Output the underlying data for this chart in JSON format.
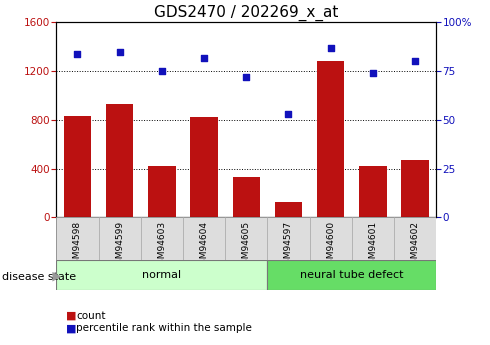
{
  "title": "GDS2470 / 202269_x_at",
  "categories": [
    "GSM94598",
    "GSM94599",
    "GSM94603",
    "GSM94604",
    "GSM94605",
    "GSM94597",
    "GSM94600",
    "GSM94601",
    "GSM94602"
  ],
  "bar_values": [
    830,
    930,
    420,
    820,
    330,
    130,
    1280,
    420,
    470
  ],
  "scatter_values": [
    84,
    85,
    75,
    82,
    72,
    53,
    87,
    74,
    80
  ],
  "bar_color": "#BB1111",
  "scatter_color": "#1111BB",
  "left_ylim": [
    0,
    1600
  ],
  "right_ylim": [
    0,
    100
  ],
  "left_yticks": [
    0,
    400,
    800,
    1200,
    1600
  ],
  "right_yticks": [
    0,
    25,
    50,
    75,
    100
  ],
  "right_yticklabels": [
    "0",
    "25",
    "50",
    "75",
    "100%"
  ],
  "grid_lines": [
    400,
    800,
    1200
  ],
  "groups": [
    {
      "label": "normal",
      "start": 0,
      "end": 4,
      "color": "#ccffcc"
    },
    {
      "label": "neural tube defect",
      "start": 5,
      "end": 8,
      "color": "#66dd66"
    }
  ],
  "legend_items": [
    {
      "label": "count",
      "color": "#BB1111"
    },
    {
      "label": "percentile rank within the sample",
      "color": "#1111BB"
    }
  ],
  "bar_width": 0.65,
  "title_fontsize": 11,
  "axis_fontsize": 8,
  "tick_fontsize": 7.5
}
